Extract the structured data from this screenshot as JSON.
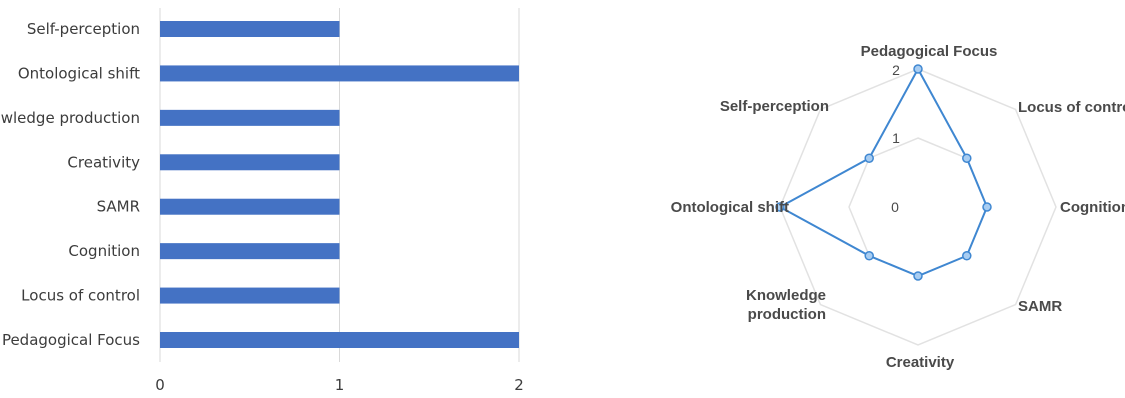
{
  "chart_data": [
    {
      "type": "bar",
      "orientation": "horizontal",
      "categories": [
        "Self-perception",
        "Ontological shift",
        "Knowledge production",
        "Creativity",
        "SAMR",
        "Cognition",
        "Locus of control",
        "Pedagogical Focus"
      ],
      "values": [
        1,
        2,
        1,
        1,
        1,
        1,
        1,
        2
      ],
      "xlim": [
        0,
        2
      ],
      "xticks": [
        "0",
        "1",
        "2"
      ],
      "grid": true,
      "bar_color": "#4472c4"
    },
    {
      "type": "radar",
      "axes": [
        "Pedagogical Focus",
        "Locus of control",
        "Cognition",
        "SAMR",
        "Creativity",
        "Knowledge production",
        "Ontological shift",
        "Self-perception"
      ],
      "values": [
        2,
        1,
        1,
        1,
        1,
        1,
        2,
        1
      ],
      "rlim": [
        0,
        2
      ],
      "rticks": [
        "0",
        "1",
        "2"
      ],
      "grid": true,
      "line_color": "#3f87d1",
      "point_fill": "#a8cdf2"
    }
  ]
}
